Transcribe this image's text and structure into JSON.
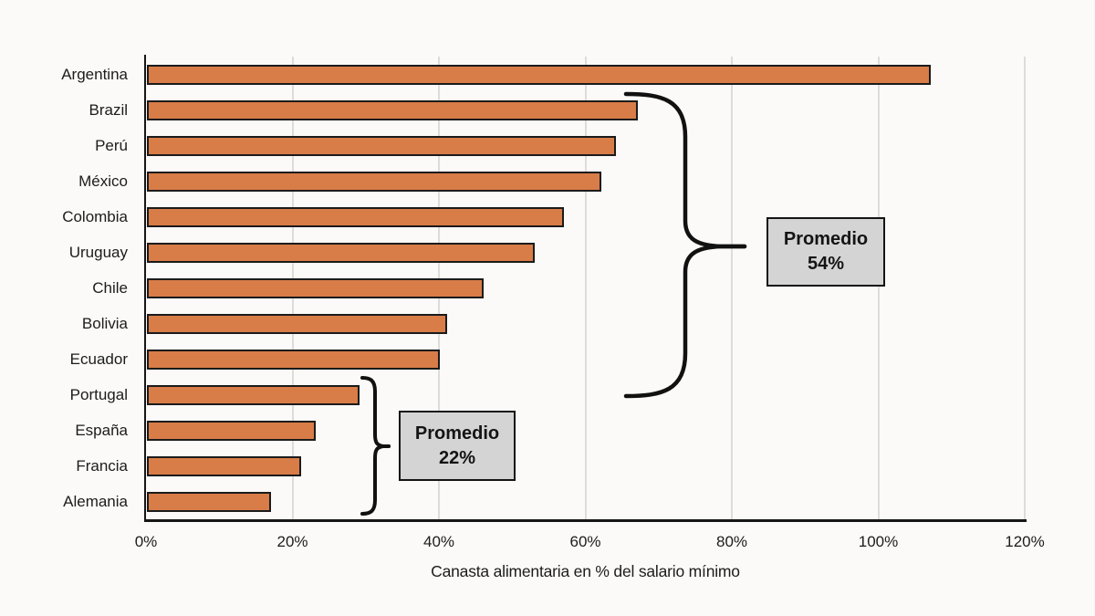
{
  "chart_data": {
    "type": "bar",
    "orientation": "horizontal",
    "title": "",
    "xlabel": "Canasta alimentaria en % del salario mínimo",
    "ylabel": "",
    "categories": [
      "Argentina",
      "Brazil",
      "Perú",
      "México",
      "Colombia",
      "Uruguay",
      "Chile",
      "Bolivia",
      "Ecuador",
      "Portugal",
      "España",
      "Francia",
      "Alemania"
    ],
    "values": [
      107,
      67,
      64,
      62,
      57,
      53,
      46,
      41,
      40,
      29,
      23,
      21,
      17
    ],
    "xlim": [
      0,
      120
    ],
    "x_tick_labels": [
      "0%",
      "20%",
      "40%",
      "60%",
      "80%",
      "100%",
      "120%"
    ],
    "grid": "vertical",
    "legend": "none",
    "annotations": [
      {
        "line1": "Promedio",
        "line2": "54%",
        "applies_to_categories": [
          "Brazil",
          "Perú",
          "México",
          "Colombia",
          "Uruguay",
          "Chile",
          "Bolivia",
          "Ecuador"
        ]
      },
      {
        "line1": "Promedio",
        "line2": "22%",
        "applies_to_categories": [
          "Portugal",
          "España",
          "Francia",
          "Alemania"
        ]
      }
    ]
  },
  "colors": {
    "bar_fill": "#d87c48",
    "bar_border": "#1b1b1b",
    "gridline": "#dcdcda",
    "axis": "#161616",
    "annotation_box_fill": "#d4d4d4",
    "annotation_box_border": "#141414",
    "background": "#fbfaf8",
    "text": "#1c1c1c"
  }
}
